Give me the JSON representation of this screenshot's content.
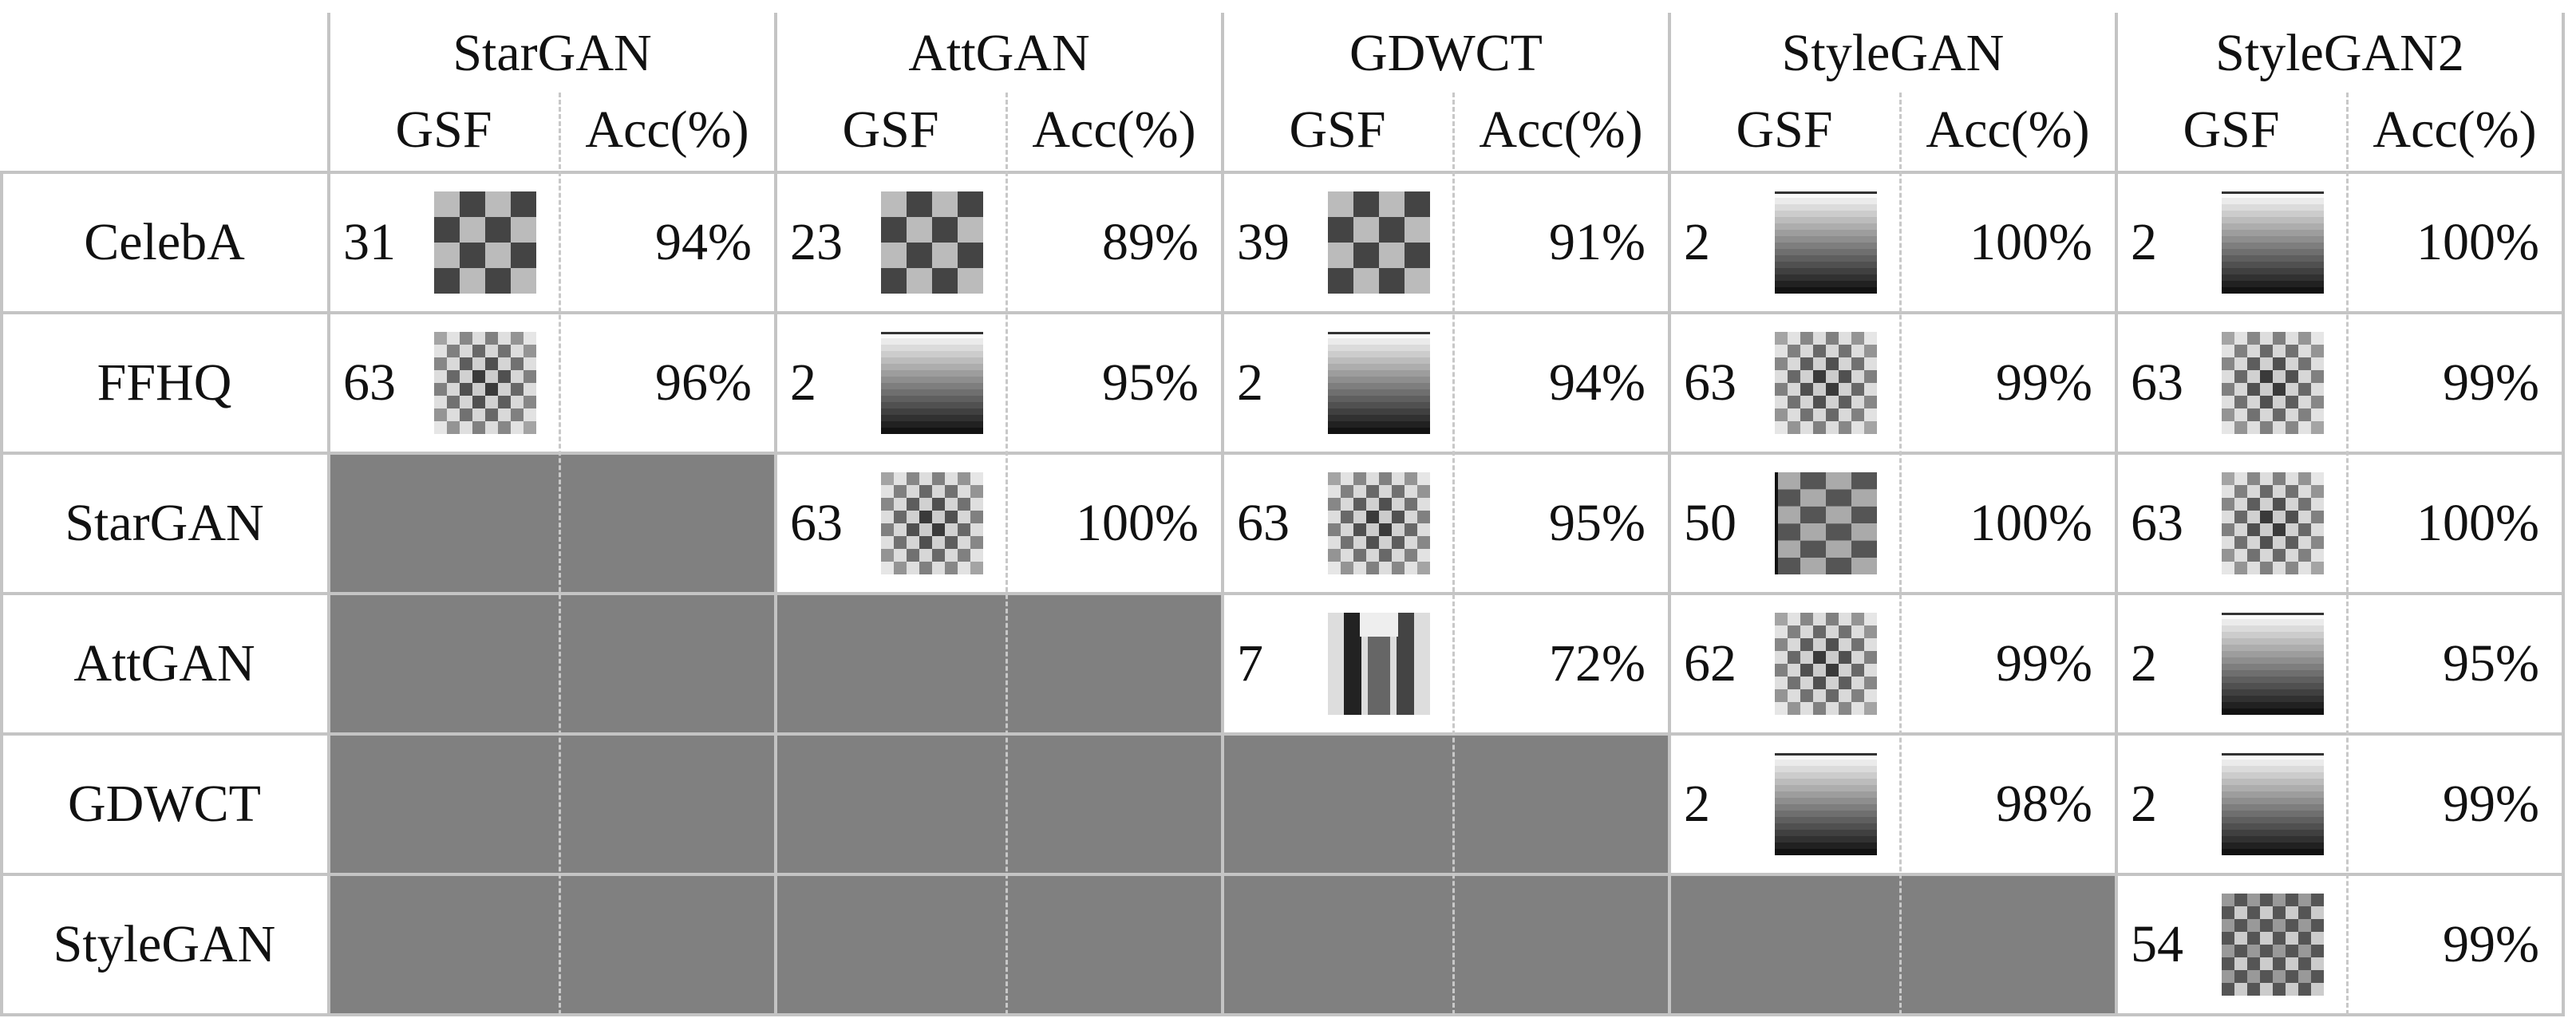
{
  "table": {
    "columns": [
      "StarGAN",
      "AttGAN",
      "GDWCT",
      "StyleGAN",
      "StyleGAN2"
    ],
    "subcolumns": [
      "GSF",
      "Acc(%)"
    ],
    "rows": [
      {
        "label": "CelebA",
        "cells": [
          {
            "gsf": 31,
            "acc": "94%"
          },
          {
            "gsf": 23,
            "acc": "89%"
          },
          {
            "gsf": 39,
            "acc": "91%"
          },
          {
            "gsf": 2,
            "acc": "100%"
          },
          {
            "gsf": 2,
            "acc": "100%"
          }
        ]
      },
      {
        "label": "FFHQ",
        "cells": [
          {
            "gsf": 63,
            "acc": "96%"
          },
          {
            "gsf": 2,
            "acc": "95%"
          },
          {
            "gsf": 2,
            "acc": "94%"
          },
          {
            "gsf": 63,
            "acc": "99%"
          },
          {
            "gsf": 63,
            "acc": "99%"
          }
        ]
      },
      {
        "label": "StarGAN",
        "cells": [
          null,
          {
            "gsf": 63,
            "acc": "100%"
          },
          {
            "gsf": 63,
            "acc": "95%"
          },
          {
            "gsf": 50,
            "acc": "100%"
          },
          {
            "gsf": 63,
            "acc": "100%"
          }
        ]
      },
      {
        "label": "AttGAN",
        "cells": [
          null,
          null,
          {
            "gsf": 7,
            "acc": "72%"
          },
          {
            "gsf": 62,
            "acc": "99%"
          },
          {
            "gsf": 2,
            "acc": "95%"
          }
        ]
      },
      {
        "label": "GDWCT",
        "cells": [
          null,
          null,
          null,
          {
            "gsf": 2,
            "acc": "98%"
          },
          {
            "gsf": 2,
            "acc": "99%"
          }
        ]
      },
      {
        "label": "StyleGAN",
        "cells": [
          null,
          null,
          null,
          null,
          {
            "gsf": 54,
            "acc": "99%"
          }
        ]
      }
    ]
  }
}
